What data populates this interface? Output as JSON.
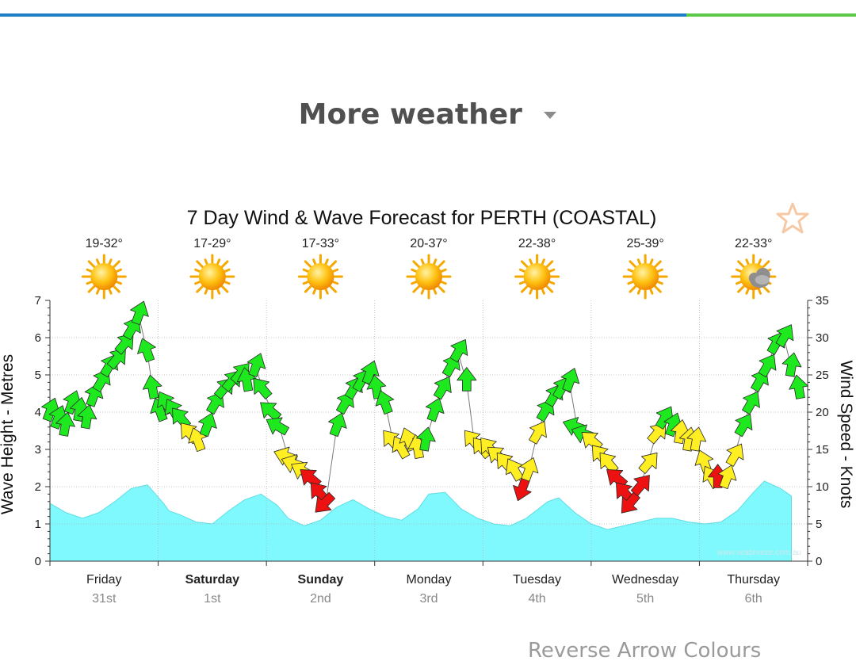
{
  "header": {
    "more_weather_label": "More weather",
    "accent_blue": "#1f7fc4",
    "accent_green": "#5cc94a"
  },
  "links": {
    "reverse_arrow_colours": "Reverse Arrow Colours"
  },
  "chart_data": {
    "type": "line",
    "title": "7 Day Wind & Wave Forecast for PERTH (COASTAL)",
    "ylabel_left": "Wave Height - Metres",
    "ylabel_right": "Wind Speed - Knots",
    "ylim_left": [
      0,
      7
    ],
    "ylim_right": [
      0,
      35
    ],
    "yticks_left": [
      "0",
      "1",
      "2",
      "3",
      "4",
      "5",
      "6",
      "7"
    ],
    "yticks_right": [
      "0",
      "5",
      "10",
      "15",
      "20",
      "25",
      "30",
      "35"
    ],
    "watermark": "www.seabreeze.com.au",
    "grid": true,
    "days": [
      {
        "name": "Friday",
        "date": "31st",
        "bold": false,
        "temp": "19-32°",
        "icon": "sun-icon"
      },
      {
        "name": "Saturday",
        "date": "1st",
        "bold": true,
        "temp": "17-29°",
        "icon": "sun-icon"
      },
      {
        "name": "Sunday",
        "date": "2nd",
        "bold": true,
        "temp": "17-33°",
        "icon": "sun-icon"
      },
      {
        "name": "Monday",
        "date": "3rd",
        "bold": false,
        "temp": "20-37°",
        "icon": "sun-icon"
      },
      {
        "name": "Tuesday",
        "date": "4th",
        "bold": false,
        "temp": "22-38°",
        "icon": "sun-icon"
      },
      {
        "name": "Wednesday",
        "date": "5th",
        "bold": false,
        "temp": "25-39°",
        "icon": "sun-icon"
      },
      {
        "name": "Thursday",
        "date": "6th",
        "bold": false,
        "temp": "22-33°",
        "icon": "sun-cloud-icon"
      }
    ],
    "wave_series": {
      "name": "Wave Height",
      "color": "#7ff9fd",
      "x_days": [
        0,
        0.15,
        0.3,
        0.45,
        0.6,
        0.75,
        0.9,
        1.05,
        1.1,
        1.2,
        1.35,
        1.5,
        1.65,
        1.8,
        1.95,
        2.1,
        2.2,
        2.35,
        2.5,
        2.65,
        2.8,
        2.95,
        3.1,
        3.25,
        3.4,
        3.5,
        3.65,
        3.8,
        3.95,
        4.1,
        4.25,
        4.4,
        4.6,
        4.7,
        4.85,
        5.0,
        5.15,
        5.3,
        5.45,
        5.6,
        5.75,
        5.9,
        6.05,
        6.2,
        6.35,
        6.5,
        6.6,
        6.75,
        6.85
      ],
      "y_metres": [
        1.55,
        1.3,
        1.15,
        1.3,
        1.6,
        1.95,
        2.05,
        1.55,
        1.35,
        1.25,
        1.05,
        1.0,
        1.35,
        1.65,
        1.8,
        1.5,
        1.15,
        0.95,
        1.1,
        1.45,
        1.65,
        1.4,
        1.2,
        1.1,
        1.4,
        1.8,
        1.85,
        1.4,
        1.15,
        1.0,
        0.95,
        1.15,
        1.6,
        1.7,
        1.3,
        1.0,
        0.85,
        0.95,
        1.05,
        1.15,
        1.15,
        1.05,
        1.0,
        1.05,
        1.35,
        1.85,
        2.15,
        1.95,
        1.75
      ]
    },
    "wind_series": {
      "name": "Wind Speed",
      "color_scale": {
        "green": "#1ee81e",
        "yellow": "#ffee22",
        "red": "#ee1111"
      },
      "points": [
        {
          "x": 0.0,
          "y": 20,
          "d": 200,
          "c": "green"
        },
        {
          "x": 0.07,
          "y": 19,
          "d": 200,
          "c": "green"
        },
        {
          "x": 0.14,
          "y": 18,
          "d": 190,
          "c": "green"
        },
        {
          "x": 0.2,
          "y": 21,
          "d": 200,
          "c": "green"
        },
        {
          "x": 0.27,
          "y": 20,
          "d": 190,
          "c": "green"
        },
        {
          "x": 0.34,
          "y": 19,
          "d": 190,
          "c": "green"
        },
        {
          "x": 0.4,
          "y": 22,
          "d": 200,
          "c": "green"
        },
        {
          "x": 0.47,
          "y": 24,
          "d": 210,
          "c": "green"
        },
        {
          "x": 0.54,
          "y": 26,
          "d": 210,
          "c": "green"
        },
        {
          "x": 0.61,
          "y": 27,
          "d": 220,
          "c": "green"
        },
        {
          "x": 0.68,
          "y": 29,
          "d": 220,
          "c": "green"
        },
        {
          "x": 0.75,
          "y": 31,
          "d": 210,
          "c": "green"
        },
        {
          "x": 0.82,
          "y": 33,
          "d": 200,
          "c": "green"
        },
        {
          "x": 0.9,
          "y": 28,
          "d": 160,
          "c": "green"
        },
        {
          "x": 0.95,
          "y": 23,
          "d": 170,
          "c": "green"
        },
        {
          "x": 1.02,
          "y": 20,
          "d": 160,
          "c": "green"
        },
        {
          "x": 1.08,
          "y": 21,
          "d": 150,
          "c": "green"
        },
        {
          "x": 1.15,
          "y": 20,
          "d": 150,
          "c": "green"
        },
        {
          "x": 1.22,
          "y": 19,
          "d": 140,
          "c": "green"
        },
        {
          "x": 1.3,
          "y": 17,
          "d": 140,
          "c": "yellow"
        },
        {
          "x": 1.37,
          "y": 16,
          "d": 160,
          "c": "yellow"
        },
        {
          "x": 1.45,
          "y": 18,
          "d": 200,
          "c": "green"
        },
        {
          "x": 1.52,
          "y": 21,
          "d": 210,
          "c": "green"
        },
        {
          "x": 1.6,
          "y": 23,
          "d": 220,
          "c": "green"
        },
        {
          "x": 1.67,
          "y": 24,
          "d": 220,
          "c": "green"
        },
        {
          "x": 1.75,
          "y": 25,
          "d": 220,
          "c": "green"
        },
        {
          "x": 1.82,
          "y": 24,
          "d": 170,
          "c": "green"
        },
        {
          "x": 1.9,
          "y": 26,
          "d": 200,
          "c": "green"
        },
        {
          "x": 1.97,
          "y": 23,
          "d": 140,
          "c": "green"
        },
        {
          "x": 2.05,
          "y": 20,
          "d": 130,
          "c": "green"
        },
        {
          "x": 2.12,
          "y": 18,
          "d": 120,
          "c": "green"
        },
        {
          "x": 2.2,
          "y": 14,
          "d": 110,
          "c": "yellow"
        },
        {
          "x": 2.27,
          "y": 13,
          "d": 110,
          "c": "yellow"
        },
        {
          "x": 2.35,
          "y": 12,
          "d": 120,
          "c": "yellow"
        },
        {
          "x": 2.42,
          "y": 11,
          "d": 130,
          "c": "red"
        },
        {
          "x": 2.5,
          "y": 9,
          "d": 140,
          "c": "red"
        },
        {
          "x": 2.55,
          "y": 8,
          "d": 45,
          "c": "red"
        },
        {
          "x": 2.65,
          "y": 18,
          "d": 200,
          "c": "green"
        },
        {
          "x": 2.72,
          "y": 21,
          "d": 210,
          "c": "green"
        },
        {
          "x": 2.8,
          "y": 23,
          "d": 210,
          "c": "green"
        },
        {
          "x": 2.87,
          "y": 24,
          "d": 210,
          "c": "green"
        },
        {
          "x": 2.95,
          "y": 25,
          "d": 200,
          "c": "green"
        },
        {
          "x": 3.02,
          "y": 23,
          "d": 170,
          "c": "green"
        },
        {
          "x": 3.1,
          "y": 21,
          "d": 160,
          "c": "green"
        },
        {
          "x": 3.17,
          "y": 16,
          "d": 140,
          "c": "yellow"
        },
        {
          "x": 3.25,
          "y": 15,
          "d": 150,
          "c": "yellow"
        },
        {
          "x": 3.32,
          "y": 16,
          "d": 160,
          "c": "yellow"
        },
        {
          "x": 3.4,
          "y": 15,
          "d": 170,
          "c": "yellow"
        },
        {
          "x": 3.47,
          "y": 16,
          "d": 190,
          "c": "green"
        },
        {
          "x": 3.55,
          "y": 20,
          "d": 200,
          "c": "green"
        },
        {
          "x": 3.62,
          "y": 23,
          "d": 210,
          "c": "green"
        },
        {
          "x": 3.7,
          "y": 26,
          "d": 210,
          "c": "green"
        },
        {
          "x": 3.77,
          "y": 28,
          "d": 210,
          "c": "green"
        },
        {
          "x": 3.85,
          "y": 24,
          "d": 180,
          "c": "green"
        },
        {
          "x": 3.92,
          "y": 16,
          "d": 140,
          "c": "yellow"
        },
        {
          "x": 4.0,
          "y": 15,
          "d": 140,
          "c": "yellow"
        },
        {
          "x": 4.07,
          "y": 15,
          "d": 140,
          "c": "yellow"
        },
        {
          "x": 4.15,
          "y": 14,
          "d": 130,
          "c": "yellow"
        },
        {
          "x": 4.22,
          "y": 13,
          "d": 140,
          "c": "yellow"
        },
        {
          "x": 4.3,
          "y": 12,
          "d": 150,
          "c": "yellow"
        },
        {
          "x": 4.37,
          "y": 10,
          "d": 20,
          "c": "red"
        },
        {
          "x": 4.42,
          "y": 12,
          "d": 200,
          "c": "yellow"
        },
        {
          "x": 4.5,
          "y": 17,
          "d": 210,
          "c": "yellow"
        },
        {
          "x": 4.57,
          "y": 20,
          "d": 210,
          "c": "green"
        },
        {
          "x": 4.65,
          "y": 22,
          "d": 210,
          "c": "green"
        },
        {
          "x": 4.72,
          "y": 23,
          "d": 210,
          "c": "green"
        },
        {
          "x": 4.8,
          "y": 24,
          "d": 200,
          "c": "green"
        },
        {
          "x": 4.87,
          "y": 18,
          "d": 110,
          "c": "green"
        },
        {
          "x": 4.95,
          "y": 17,
          "d": 110,
          "c": "green"
        },
        {
          "x": 5.02,
          "y": 16,
          "d": 130,
          "c": "yellow"
        },
        {
          "x": 5.1,
          "y": 14,
          "d": 140,
          "c": "yellow"
        },
        {
          "x": 5.17,
          "y": 13,
          "d": 140,
          "c": "yellow"
        },
        {
          "x": 5.25,
          "y": 11,
          "d": 130,
          "c": "red"
        },
        {
          "x": 5.32,
          "y": 9,
          "d": 140,
          "c": "red"
        },
        {
          "x": 5.37,
          "y": 8,
          "d": 40,
          "c": "red"
        },
        {
          "x": 5.45,
          "y": 10,
          "d": 220,
          "c": "red"
        },
        {
          "x": 5.52,
          "y": 13,
          "d": 220,
          "c": "yellow"
        },
        {
          "x": 5.6,
          "y": 17,
          "d": 220,
          "c": "yellow"
        },
        {
          "x": 5.67,
          "y": 19,
          "d": 210,
          "c": "green"
        },
        {
          "x": 5.75,
          "y": 18,
          "d": 200,
          "c": "green"
        },
        {
          "x": 5.82,
          "y": 17,
          "d": 190,
          "c": "yellow"
        },
        {
          "x": 5.9,
          "y": 16,
          "d": 190,
          "c": "yellow"
        },
        {
          "x": 5.97,
          "y": 16,
          "d": 190,
          "c": "yellow"
        },
        {
          "x": 6.05,
          "y": 13,
          "d": 160,
          "c": "yellow"
        },
        {
          "x": 6.12,
          "y": 11,
          "d": 150,
          "c": "yellow"
        },
        {
          "x": 6.17,
          "y": 11,
          "d": 180,
          "c": "red"
        },
        {
          "x": 6.25,
          "y": 11,
          "d": 200,
          "c": "yellow"
        },
        {
          "x": 6.32,
          "y": 14,
          "d": 210,
          "c": "yellow"
        },
        {
          "x": 6.4,
          "y": 18,
          "d": 210,
          "c": "green"
        },
        {
          "x": 6.47,
          "y": 21,
          "d": 210,
          "c": "green"
        },
        {
          "x": 6.55,
          "y": 24,
          "d": 210,
          "c": "green"
        },
        {
          "x": 6.62,
          "y": 26,
          "d": 210,
          "c": "green"
        },
        {
          "x": 6.7,
          "y": 29,
          "d": 210,
          "c": "green"
        },
        {
          "x": 6.78,
          "y": 30,
          "d": 210,
          "c": "green"
        },
        {
          "x": 6.85,
          "y": 26,
          "d": 190,
          "c": "green"
        },
        {
          "x": 6.92,
          "y": 23,
          "d": 170,
          "c": "green"
        }
      ]
    }
  }
}
